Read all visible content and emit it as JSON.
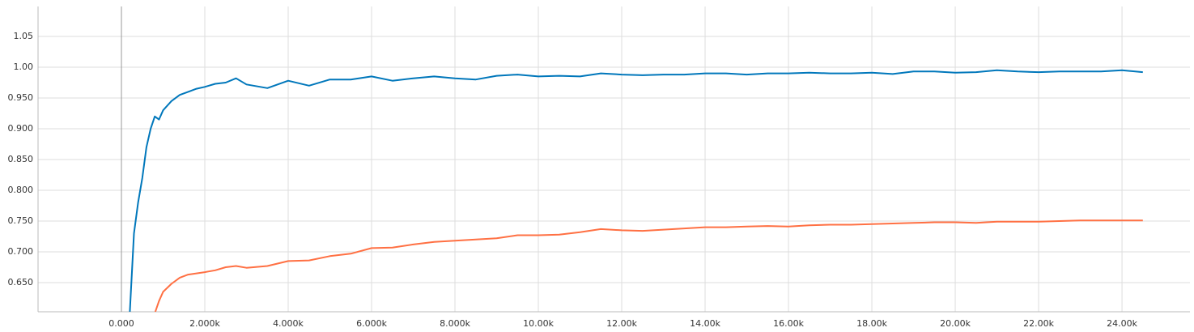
{
  "chart_data": {
    "type": "line",
    "x": [
      200,
      300,
      400,
      500,
      600,
      700,
      800,
      900,
      1000,
      1200,
      1400,
      1600,
      1800,
      2000,
      2250,
      2500,
      2750,
      3000,
      3500,
      4000,
      4500,
      5000,
      5500,
      6000,
      6500,
      7000,
      7500,
      8000,
      8500,
      9000,
      9500,
      10000,
      10500,
      11000,
      11500,
      12000,
      12500,
      13000,
      13500,
      14000,
      14500,
      15000,
      15500,
      16000,
      16500,
      17000,
      17500,
      18000,
      18500,
      19000,
      19500,
      20000,
      20500,
      21000,
      21500,
      22000,
      22500,
      23000,
      23500,
      24000,
      24500
    ],
    "series": [
      {
        "color": "#0077bb",
        "values": [
          0.6,
          0.73,
          0.78,
          0.82,
          0.87,
          0.9,
          0.92,
          0.915,
          0.93,
          0.945,
          0.955,
          0.96,
          0.965,
          0.968,
          0.973,
          0.975,
          0.982,
          0.972,
          0.966,
          0.978,
          0.97,
          0.98,
          0.98,
          0.985,
          0.978,
          0.982,
          0.985,
          0.982,
          0.98,
          0.986,
          0.988,
          0.985,
          0.986,
          0.985,
          0.99,
          0.988,
          0.987,
          0.988,
          0.988,
          0.99,
          0.99,
          0.988,
          0.99,
          0.99,
          0.991,
          0.99,
          0.99,
          0.991,
          0.989,
          0.993,
          0.993,
          0.991,
          0.992,
          0.995,
          0.993,
          0.992,
          0.993,
          0.993,
          0.993,
          0.995,
          0.992
        ]
      },
      {
        "color": "#ff7043",
        "values": [
          null,
          null,
          null,
          null,
          null,
          null,
          0.6,
          0.62,
          0.635,
          0.648,
          0.658,
          0.663,
          0.665,
          0.667,
          0.67,
          0.675,
          0.677,
          0.674,
          0.677,
          0.685,
          0.686,
          0.693,
          0.697,
          0.706,
          0.707,
          0.712,
          0.716,
          0.718,
          0.72,
          0.722,
          0.727,
          0.727,
          0.728,
          0.732,
          0.737,
          0.735,
          0.734,
          0.736,
          0.738,
          0.74,
          0.74,
          0.741,
          0.742,
          0.741,
          0.743,
          0.744,
          0.744,
          0.745,
          0.746,
          0.747,
          0.748,
          0.748,
          0.747,
          0.749,
          0.749,
          0.749,
          0.75,
          0.751,
          0.751,
          0.751,
          0.751
        ]
      }
    ],
    "xlim": [
      -2000,
      25630
    ],
    "ylim": [
      0.6026,
      1.0987
    ],
    "xticks": [
      {
        "value": 0,
        "label": "0.000"
      },
      {
        "value": 2000,
        "label": "2.000k"
      },
      {
        "value": 4000,
        "label": "4.000k"
      },
      {
        "value": 6000,
        "label": "6.000k"
      },
      {
        "value": 8000,
        "label": "8.000k"
      },
      {
        "value": 10000,
        "label": "10.00k"
      },
      {
        "value": 12000,
        "label": "12.00k"
      },
      {
        "value": 14000,
        "label": "14.00k"
      },
      {
        "value": 16000,
        "label": "16.00k"
      },
      {
        "value": 18000,
        "label": "18.00k"
      },
      {
        "value": 20000,
        "label": "20.00k"
      },
      {
        "value": 22000,
        "label": "22.00k"
      },
      {
        "value": 24000,
        "label": "24.00k"
      }
    ],
    "yticks": [
      {
        "value": 0.65,
        "label": "0.650"
      },
      {
        "value": 0.7,
        "label": "0.700"
      },
      {
        "value": 0.75,
        "label": "0.750"
      },
      {
        "value": 0.8,
        "label": "0.800"
      },
      {
        "value": 0.85,
        "label": "0.850"
      },
      {
        "value": 0.9,
        "label": "0.900"
      },
      {
        "value": 0.95,
        "label": "0.950"
      },
      {
        "value": 1.0,
        "label": "1.00"
      },
      1.05
    ],
    "grid": true
  }
}
